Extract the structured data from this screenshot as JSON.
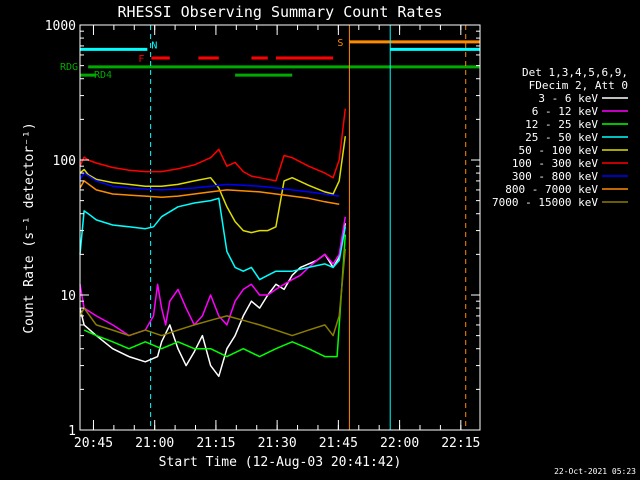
{
  "chart_data": {
    "type": "line",
    "title": "RHESSI Observing Summary Count Rates",
    "xlabel": "Start Time (12-Aug-03 20:41:42)",
    "ylabel": "Count Rate (s⁻¹ detector⁻¹)",
    "yscale": "log",
    "ylim": [
      1,
      1000
    ],
    "xlim_minutes": [
      0,
      98
    ],
    "x_tick_labels": [
      "20:45",
      "21:00",
      "21:15",
      "21:30",
      "21:45",
      "22:00",
      "22:15"
    ],
    "x_tick_minutes": [
      3.3,
      18.3,
      33.3,
      48.3,
      63.3,
      78.3,
      93.3
    ],
    "y_tick_labels": [
      "1",
      "10",
      "100",
      "1000"
    ],
    "y_ticks": [
      1,
      10,
      100,
      1000
    ],
    "legend_position": "right",
    "legend_header": [
      "Det 1,3,4,5,6,9,",
      "FDecim 2, Att 0"
    ],
    "series": [
      {
        "name": "3 - 6 keV",
        "color": "#ffffff",
        "x": [
          0,
          1,
          4,
          8,
          12,
          16,
          19,
          20,
          22,
          24,
          26,
          28,
          30,
          32,
          34,
          36,
          38,
          40,
          42,
          44,
          46,
          48,
          50,
          52,
          54,
          56,
          58,
          60,
          62,
          63.5,
          65
        ],
        "y": [
          8,
          6,
          5,
          4,
          3.5,
          3.2,
          3.5,
          4.5,
          6,
          4,
          3,
          3.8,
          5,
          3,
          2.5,
          4,
          5,
          7,
          9,
          8,
          10,
          12,
          11,
          14,
          16,
          17,
          18,
          20,
          16,
          19,
          34
        ]
      },
      {
        "name": "6 - 12 keV",
        "color": "#ff00ff",
        "x": [
          0,
          1,
          4,
          8,
          12,
          16,
          18,
          19,
          20,
          21,
          22,
          24,
          26,
          28,
          30,
          32,
          34,
          36,
          38,
          40,
          42,
          44,
          46,
          48,
          50,
          52,
          54,
          56,
          58,
          60,
          62,
          63.5,
          65
        ],
        "y": [
          12,
          8,
          7,
          6,
          5,
          5.5,
          7,
          12,
          8,
          6,
          9,
          11,
          8,
          6,
          7,
          10,
          7,
          6,
          9,
          11,
          12,
          10,
          10,
          11,
          12,
          13,
          14,
          16,
          18,
          20,
          17,
          20,
          38
        ]
      },
      {
        "name": "12 - 25 keV",
        "color": "#00ff00",
        "x": [
          1,
          4,
          8,
          12,
          16,
          20,
          24,
          28,
          32,
          36,
          40,
          44,
          48,
          52,
          56,
          60,
          63,
          65
        ],
        "y": [
          5.5,
          5,
          4.5,
          4,
          4.5,
          4,
          4.5,
          4,
          4,
          3.5,
          4,
          3.5,
          4,
          4.5,
          4,
          3.5,
          3.5,
          28
        ]
      },
      {
        "name": "25 - 50 keV",
        "color": "#00ffff",
        "x": [
          0,
          1,
          2,
          4,
          8,
          12,
          16,
          18,
          20,
          24,
          28,
          32,
          34,
          36,
          38,
          40,
          42,
          44,
          46,
          48,
          50,
          52,
          56,
          60,
          62,
          63.5,
          65
        ],
        "y": [
          20,
          42,
          40,
          36,
          33,
          32,
          31,
          32,
          38,
          45,
          48,
          50,
          52,
          21,
          16,
          15,
          16,
          13,
          14,
          15,
          15,
          15,
          16,
          17,
          16,
          18,
          32
        ]
      },
      {
        "name": "50 - 100 keV",
        "color": "#dddd00",
        "x": [
          0,
          1,
          2,
          4,
          8,
          12,
          16,
          20,
          24,
          28,
          32,
          34,
          36,
          38,
          40,
          42,
          44,
          46,
          48,
          50,
          52,
          56,
          60,
          62,
          63.5,
          65
        ],
        "y": [
          80,
          85,
          78,
          72,
          68,
          66,
          64,
          64,
          66,
          70,
          74,
          62,
          45,
          35,
          30,
          29,
          30,
          30,
          32,
          70,
          74,
          65,
          58,
          56,
          70,
          150
        ]
      },
      {
        "name": "100 - 300 keV",
        "color": "#ff0000",
        "x": [
          0,
          1,
          2,
          4,
          8,
          12,
          16,
          20,
          24,
          28,
          32,
          34,
          36,
          38,
          40,
          42,
          44,
          46,
          48,
          50,
          52,
          56,
          60,
          62,
          63.5,
          65
        ],
        "y": [
          90,
          105,
          100,
          95,
          88,
          84,
          82,
          82,
          86,
          92,
          104,
          120,
          90,
          96,
          82,
          76,
          74,
          72,
          70,
          108,
          104,
          90,
          80,
          74,
          100,
          240
        ]
      },
      {
        "name": "300 - 800 keV",
        "color": "#0000ff",
        "x": [
          0,
          1,
          4,
          8,
          12,
          16,
          20,
          24,
          28,
          32,
          36,
          40,
          44,
          48,
          52,
          56,
          60,
          63.5
        ],
        "y": [
          72,
          80,
          70,
          64,
          62,
          61,
          60,
          61,
          62,
          64,
          66,
          65,
          64,
          62,
          60,
          58,
          56,
          54
        ]
      },
      {
        "name": "800 - 7000 keV",
        "color": "#ff8c00",
        "x": [
          0,
          1,
          4,
          8,
          12,
          16,
          20,
          24,
          28,
          32,
          36,
          40,
          44,
          48,
          52,
          56,
          60,
          63.5
        ],
        "y": [
          62,
          70,
          60,
          56,
          55,
          54,
          53,
          54,
          56,
          58,
          60,
          59,
          58,
          56,
          54,
          52,
          49,
          47
        ]
      },
      {
        "name": "7000 - 15000 keV",
        "color": "#8b7d00",
        "x": [
          0,
          1,
          4,
          8,
          12,
          16,
          20,
          24,
          28,
          32,
          36,
          40,
          44,
          48,
          52,
          56,
          60,
          62,
          63.5,
          65
        ],
        "y": [
          7,
          8,
          6,
          5.5,
          5,
          5.5,
          5,
          5.5,
          6,
          6.5,
          7,
          6.5,
          6,
          5.5,
          5,
          5.5,
          6,
          5,
          7,
          22
        ]
      }
    ],
    "flag_bars": [
      {
        "label": "N",
        "color": "#00ffff",
        "segments": [
          [
            0,
            16.5
          ],
          [
            76,
            98
          ]
        ],
        "level": 660
      },
      {
        "label": "F",
        "color": "#ff0000",
        "segments": [
          [
            17.5,
            22
          ],
          [
            29,
            34
          ],
          [
            42,
            46
          ],
          [
            48,
            62
          ]
        ],
        "level": 570
      },
      {
        "label": "S",
        "color": "#ff8c00",
        "segments": [
          [
            66,
            98
          ]
        ],
        "level": 750
      },
      {
        "label": "RDG",
        "color": "#00aa00",
        "segments": [
          [
            2,
            98
          ]
        ],
        "level": 490
      },
      {
        "label": "RD4",
        "color": "#00aa00",
        "segments": [
          [
            0,
            4
          ],
          [
            38,
            52
          ]
        ],
        "level": 425
      }
    ],
    "vertical_markers": [
      {
        "color": "#00ffff",
        "x": 17.3,
        "style": "dashed"
      },
      {
        "color": "#00ffff",
        "x": 76,
        "style": "solid"
      },
      {
        "color": "#ff8c00",
        "x": 66,
        "style": "solid"
      },
      {
        "color": "#ff8c00",
        "x": 94.5,
        "style": "dashed"
      }
    ]
  },
  "footer": {
    "date": "22-Oct-2021 05:23"
  }
}
